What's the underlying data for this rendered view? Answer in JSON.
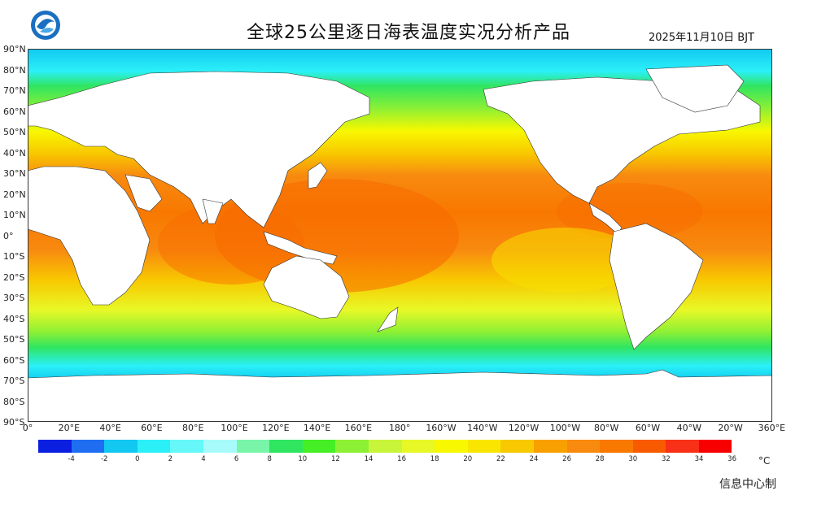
{
  "header": {
    "title": "全球25公里逐日海表温度实况分析产品",
    "date": "2025年11月10日 BJT"
  },
  "footer": {
    "source": "信息中心制"
  },
  "map": {
    "lat_labels": [
      "90°N",
      "80°N",
      "70°N",
      "60°N",
      "50°N",
      "40°N",
      "30°N",
      "20°N",
      "10°N",
      "0°",
      "10°S",
      "20°S",
      "30°S",
      "40°S",
      "50°S",
      "60°S",
      "70°S",
      "80°S",
      "90°S"
    ],
    "lon_labels": [
      "0°",
      "20°E",
      "40°E",
      "60°E",
      "80°E",
      "100°E",
      "120°E",
      "140°E",
      "160°E",
      "180°",
      "160°W",
      "140°W",
      "120°W",
      "100°W",
      "80°W",
      "60°W",
      "40°W",
      "20°W",
      "360°E"
    ]
  },
  "legend": {
    "unit": "°C",
    "colors": [
      "#0a1fe0",
      "#1f6ef2",
      "#12c8f0",
      "#2bf0f8",
      "#66f8f8",
      "#a8fbfb",
      "#78f5a8",
      "#30e560",
      "#45ee25",
      "#8cf035",
      "#c8f53a",
      "#e8f826",
      "#f8f800",
      "#f8e600",
      "#f8c800",
      "#f8a000",
      "#f88a10",
      "#f87800",
      "#f85a00",
      "#f83018",
      "#f80000"
    ],
    "labels": [
      "-4",
      "-2",
      "0",
      "2",
      "4",
      "6",
      "8",
      "10",
      "12",
      "14",
      "16",
      "18",
      "20",
      "22",
      "24",
      "26",
      "28",
      "30",
      "32",
      "34",
      "36"
    ]
  }
}
